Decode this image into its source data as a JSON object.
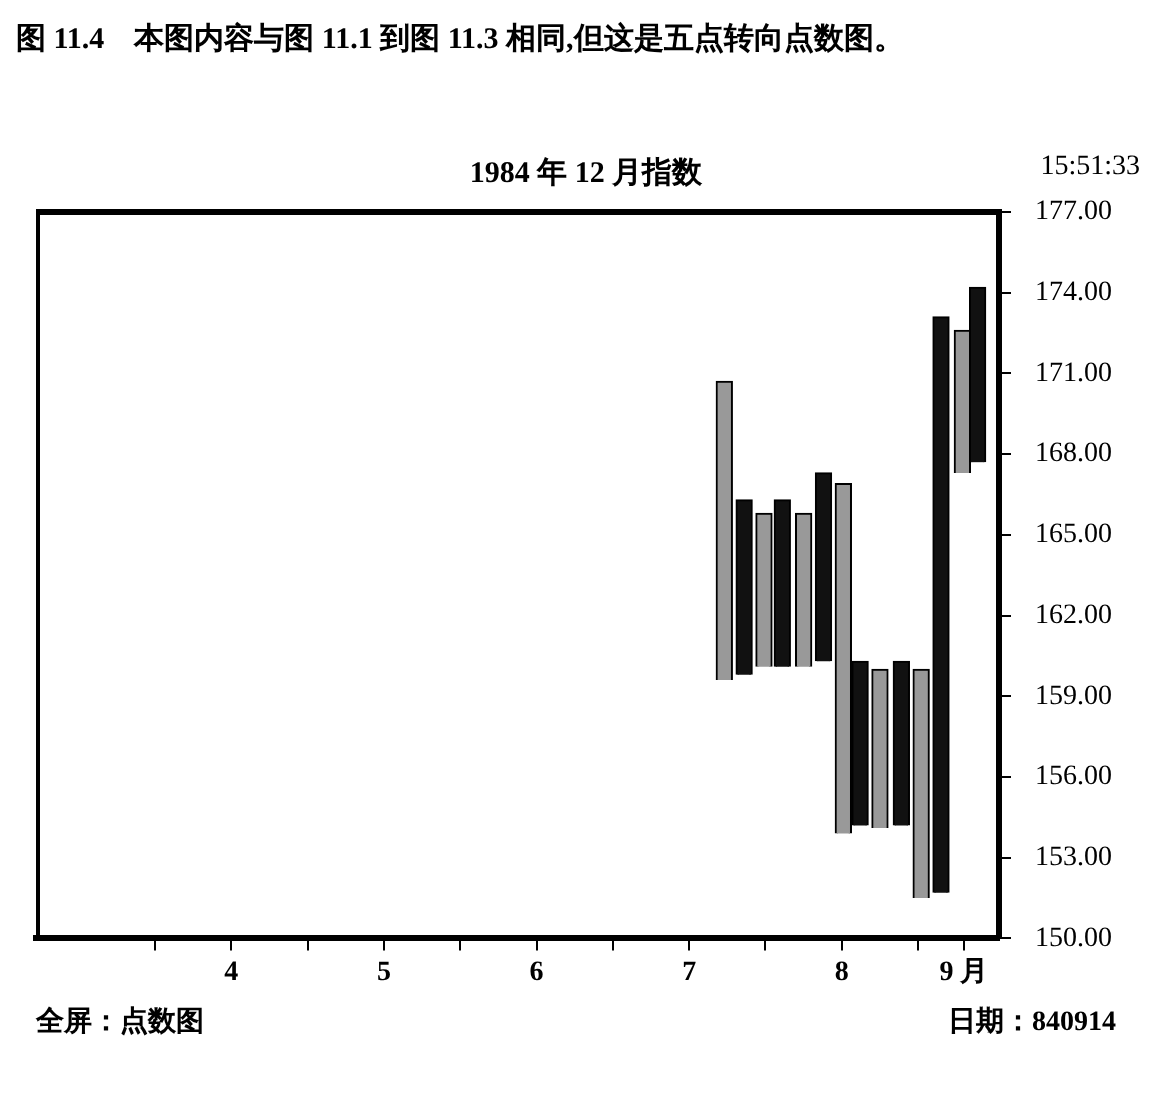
{
  "chart_data": {
    "type": "bar",
    "title": "1984 年 12 月指数",
    "annotations": [
      "图 11.4　本图内容与图 11.1 到图 11.3 相同,但这是五点转向点数图。",
      "15:51:33",
      "全屏：点数图",
      "日期：840914"
    ],
    "series": [
      {
        "color": "#111111",
        "x": [
          7.36,
          7.61,
          7.88,
          8.12,
          8.39,
          8.65,
          8.89
        ],
        "base": [
          159.8,
          160.1,
          160.3,
          154.2,
          154.2,
          151.7,
          167.7
        ],
        "values": [
          6.5,
          6.2,
          7.0,
          6.1,
          6.1,
          21.4,
          6.5
        ]
      },
      {
        "color": "#999999",
        "x": [
          7.23,
          7.49,
          7.75,
          8.01,
          8.25,
          8.52,
          8.79
        ],
        "base": [
          159.6,
          160.1,
          160.1,
          153.9,
          154.1,
          151.5,
          167.3
        ],
        "values": [
          11.1,
          5.7,
          5.7,
          13.0,
          5.9,
          8.5,
          5.3
        ]
      }
    ],
    "xlim": [
      2.72,
      9.03
    ],
    "xticks": [
      {
        "value": 3.5,
        "label": null
      },
      {
        "value": 4,
        "label": "4"
      },
      {
        "value": 4.5,
        "label": null
      },
      {
        "value": 5,
        "label": "5"
      },
      {
        "value": 5.5,
        "label": null
      },
      {
        "value": 6,
        "label": "6"
      },
      {
        "value": 6.5,
        "label": null
      },
      {
        "value": 7,
        "label": "7"
      },
      {
        "value": 7.5,
        "label": null
      },
      {
        "value": 8,
        "label": "8"
      },
      {
        "value": 8.5,
        "label": null
      },
      {
        "value": 8.8,
        "label": "9 月"
      }
    ],
    "ylim": [
      150,
      177
    ],
    "yticks": [
      {
        "value": 150,
        "label": "150.00"
      },
      {
        "value": 153,
        "label": "153.00"
      },
      {
        "value": 156,
        "label": "156.00"
      },
      {
        "value": 159,
        "label": "159.00"
      },
      {
        "value": 162,
        "label": "162.00"
      },
      {
        "value": 165,
        "label": "165.00"
      },
      {
        "value": 168,
        "label": "168.00"
      },
      {
        "value": 171,
        "label": "171.00"
      },
      {
        "value": 174,
        "label": "174.00"
      },
      {
        "value": 177,
        "label": "177.00"
      }
    ],
    "grid": false,
    "legend": false
  }
}
